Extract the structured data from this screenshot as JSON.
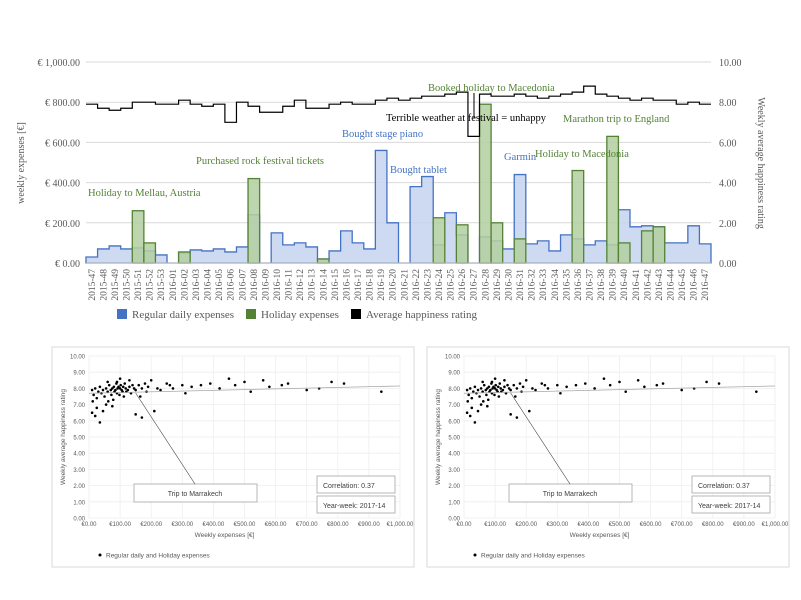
{
  "chart_data": [
    {
      "type": "area",
      "title": "",
      "ylabel_left": "weekly expenses [€]",
      "ylabel_right": "Weekly average happiness rating",
      "y_left_lim": [
        0,
        1000
      ],
      "y_left_ticks": [
        "€ 0.00",
        "€ 200.00",
        "€ 400.00",
        "€ 600.00",
        "€ 800.00",
        "€ 1,000.00"
      ],
      "y_right_lim": [
        0,
        10
      ],
      "y_right_ticks": [
        "0.00",
        "2.00",
        "4.00",
        "6.00",
        "8.00",
        "10.00"
      ],
      "x_ticks": [
        "2015-47",
        "2015-48",
        "2015-49",
        "2015-50",
        "2015-51",
        "2015-52",
        "2015-53",
        "2016-01",
        "2016-02",
        "2016-03",
        "2016-04",
        "2016-05",
        "2016-06",
        "2016-07",
        "2016-08",
        "2016-09",
        "2016-10",
        "2016-11",
        "2016-12",
        "2016-13",
        "2016-14",
        "2016-15",
        "2016-16",
        "2016-17",
        "2016-18",
        "2016-19",
        "2016-20",
        "2016-21",
        "2016-22",
        "2016-23",
        "2016-24",
        "2016-25",
        "2016-26",
        "2016-27",
        "2016-28",
        "2016-29",
        "2016-30",
        "2016-31",
        "2016-32",
        "2016-33",
        "2016-34",
        "2016-35",
        "2016-36",
        "2016-37",
        "2016-38",
        "2016-39",
        "2016-40",
        "2016-41",
        "2016-42",
        "2016-43",
        "2016-44",
        "2016-45",
        "2016-46",
        "2016-47"
      ],
      "series": [
        {
          "name": "Regular daily expenses",
          "color": "#4472c4",
          "fill": "#c5d3ef",
          "values": [
            30,
            70,
            85,
            70,
            75,
            60,
            40,
            0,
            50,
            65,
            60,
            70,
            55,
            80,
            240,
            0,
            150,
            90,
            100,
            80,
            20,
            60,
            160,
            100,
            70,
            560,
            200,
            0,
            380,
            430,
            90,
            250,
            140,
            0,
            130,
            110,
            70,
            440,
            95,
            110,
            60,
            140,
            120,
            90,
            110,
            90,
            265,
            180,
            185,
            180,
            100,
            100,
            185,
            95
          ]
        },
        {
          "name": "Holiday expenses",
          "color": "#548235",
          "fill": "#b3cfa0",
          "values": [
            0,
            0,
            0,
            0,
            260,
            100,
            0,
            0,
            55,
            0,
            0,
            0,
            0,
            0,
            420,
            0,
            0,
            0,
            0,
            0,
            20,
            0,
            0,
            0,
            0,
            0,
            0,
            0,
            0,
            0,
            225,
            0,
            190,
            0,
            790,
            200,
            0,
            120,
            0,
            0,
            0,
            0,
            460,
            0,
            0,
            630,
            100,
            0,
            160,
            180,
            0,
            0,
            0,
            0
          ]
        },
        {
          "name": "Average happiness rating",
          "color": "#000000",
          "values": [
            7.9,
            7.7,
            7.6,
            7.7,
            8.0,
            8.0,
            7.9,
            7.9,
            8.1,
            7.9,
            7.8,
            7.9,
            7.0,
            8.0,
            7.8,
            7.5,
            7.5,
            7.8,
            8.1,
            7.7,
            7.7,
            7.9,
            8.0,
            7.9,
            7.9,
            8.1,
            8.2,
            8.1,
            8.2,
            8.3,
            8.3,
            8.4,
            8.5,
            6.3,
            8.4,
            8.3,
            8.3,
            8.4,
            8.3,
            8.2,
            8.3,
            8.4,
            8.5,
            8.8,
            8.4,
            8.3,
            8.2,
            8.1,
            8.2,
            8.1,
            8.1,
            7.9,
            8.0,
            7.9
          ]
        }
      ],
      "annotations": [
        {
          "text": "Holiday to Mellau, Austria",
          "color": "#548235"
        },
        {
          "text": "Purchased rock festival tickets",
          "color": "#548235"
        },
        {
          "text": "Bought stage piano",
          "color": "#4472c4"
        },
        {
          "text": "Bought tablet",
          "color": "#4472c4"
        },
        {
          "text": "Booked holiday to Macedonia",
          "color": "#548235"
        },
        {
          "text": "Terrible weather at festival = unhappy",
          "color": "#000000"
        },
        {
          "text": "Garmin",
          "color": "#4472c4"
        },
        {
          "text": "Holiday to Macedonia",
          "color": "#548235"
        },
        {
          "text": "Marathon trip to England",
          "color": "#548235"
        }
      ],
      "legend_placement": "bottom"
    },
    {
      "type": "scatter",
      "xlabel": "Weekly expenses [€]",
      "ylabel": "Weekly average happiness rating",
      "xlim": [
        0,
        1000
      ],
      "ylim": [
        0,
        10
      ],
      "x_ticks": [
        "€0.00",
        "€100.00",
        "€200.00",
        "€300.00",
        "€400.00",
        "€500.00",
        "€600.00",
        "€700.00",
        "€800.00",
        "€900.00",
        "€1,000.00"
      ],
      "y_ticks": [
        "0.00",
        "1.00",
        "2.00",
        "3.00",
        "4.00",
        "5.00",
        "6.00",
        "7.00",
        "8.00",
        "9.00",
        "10.00"
      ],
      "points": [
        [
          10,
          7.9
        ],
        [
          15,
          7.6
        ],
        [
          20,
          8.0
        ],
        [
          25,
          7.4
        ],
        [
          30,
          7.8
        ],
        [
          35,
          8.1
        ],
        [
          40,
          7.7
        ],
        [
          45,
          7.9
        ],
        [
          50,
          7.5
        ],
        [
          55,
          8.0
        ],
        [
          60,
          7.8
        ],
        [
          62,
          7.2
        ],
        [
          65,
          8.2
        ],
        [
          70,
          7.9
        ],
        [
          72,
          7.6
        ],
        [
          75,
          8.0
        ],
        [
          78,
          7.3
        ],
        [
          80,
          8.1
        ],
        [
          82,
          7.8
        ],
        [
          85,
          7.9
        ],
        [
          88,
          8.3
        ],
        [
          90,
          7.7
        ],
        [
          92,
          8.0
        ],
        [
          95,
          8.1
        ],
        [
          98,
          7.6
        ],
        [
          100,
          8.0
        ],
        [
          102,
          8.2
        ],
        [
          105,
          7.9
        ],
        [
          108,
          7.8
        ],
        [
          110,
          8.1
        ],
        [
          112,
          7.5
        ],
        [
          115,
          8.3
        ],
        [
          118,
          8.0
        ],
        [
          120,
          7.8
        ],
        [
          125,
          7.9
        ],
        [
          130,
          8.1
        ],
        [
          135,
          7.7
        ],
        [
          140,
          8.2
        ],
        [
          145,
          8.0
        ],
        [
          150,
          7.9
        ],
        [
          160,
          8.2
        ],
        [
          165,
          7.5
        ],
        [
          170,
          8.0
        ],
        [
          180,
          8.3
        ],
        [
          185,
          7.8
        ],
        [
          190,
          8.1
        ],
        [
          200,
          8.5
        ],
        [
          210,
          6.6
        ],
        [
          220,
          8.0
        ],
        [
          230,
          7.9
        ],
        [
          250,
          8.3
        ],
        [
          260,
          8.2
        ],
        [
          270,
          8.0
        ],
        [
          300,
          8.2
        ],
        [
          310,
          7.7
        ],
        [
          330,
          8.1
        ],
        [
          360,
          8.2
        ],
        [
          390,
          8.3
        ],
        [
          420,
          8.0
        ],
        [
          450,
          8.6
        ],
        [
          470,
          8.2
        ],
        [
          500,
          8.4
        ],
        [
          520,
          7.8
        ],
        [
          560,
          8.5
        ],
        [
          580,
          8.1
        ],
        [
          620,
          8.2
        ],
        [
          640,
          8.3
        ],
        [
          700,
          7.9
        ],
        [
          740,
          8.0
        ],
        [
          780,
          8.4
        ],
        [
          820,
          8.3
        ],
        [
          940,
          7.8
        ],
        [
          10,
          6.5
        ],
        [
          20,
          6.3
        ],
        [
          35,
          5.9
        ],
        [
          45,
          6.6
        ],
        [
          12,
          7.2
        ],
        [
          25,
          6.8
        ],
        [
          55,
          7.0
        ],
        [
          75,
          6.9
        ],
        [
          150,
          6.4
        ],
        [
          170,
          6.2
        ],
        [
          60,
          8.4
        ],
        [
          100,
          8.6
        ],
        [
          130,
          8.5
        ],
        [
          90,
          8.4
        ]
      ],
      "trendline": {
        "from": [
          0,
          7.7
        ],
        "to": [
          1000,
          8.15
        ]
      },
      "annotations": {
        "callout": "Trip to Marrakech",
        "correlation": "Correlation: 0.37",
        "yearweek": "Year-week: 2017-14"
      },
      "legend": "Regular daily and Holiday expenses"
    }
  ],
  "top_legend": [
    {
      "label": "Regular daily expenses",
      "color": "#4472c4"
    },
    {
      "label": "Holiday expenses",
      "color": "#548235"
    },
    {
      "label": "Average happiness rating",
      "color": "#000000"
    }
  ]
}
